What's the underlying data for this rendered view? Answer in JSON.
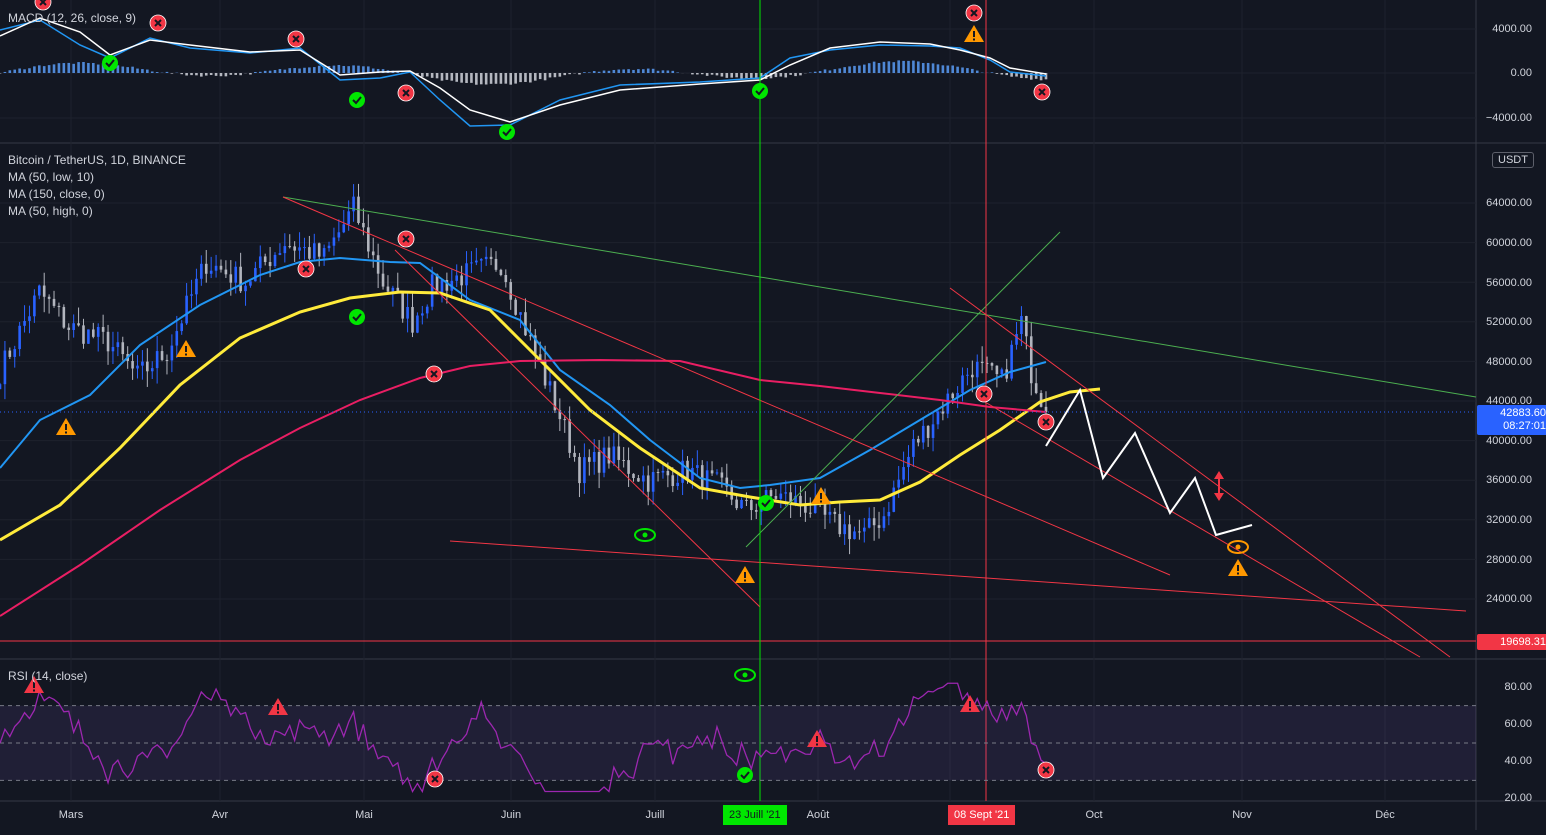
{
  "macd": {
    "legend": "MACD (12, 26, close, 9)",
    "ticks": [
      "4000.00",
      "0.00",
      "−4000.00"
    ]
  },
  "main": {
    "symbol_title": "Bitcoin / TetherUS, 1D, BINANCE",
    "indicators": [
      "MA (50, low, 10)",
      "MA (150, close, 0)",
      "MA (50, high, 0)"
    ],
    "price_ticks": [
      "64000.00",
      "60000.00",
      "56000.00",
      "52000.00",
      "48000.00",
      "44000.00",
      "40000.00",
      "36000.00",
      "32000.00",
      "28000.00",
      "24000.00"
    ],
    "currency_button": "USDT",
    "last_price": "42883.60",
    "countdown": "08:27:01",
    "support_price": "19698.31"
  },
  "rsi": {
    "legend": "RSI (14, close)",
    "ticks": [
      "80.00",
      "60.00",
      "40.00",
      "20.00"
    ]
  },
  "time_axis": {
    "months": [
      "Mars",
      "Avr",
      "Mai",
      "Juin",
      "Juill",
      "Août",
      "Oct",
      "Nov",
      "Déc"
    ],
    "green_marker": "23 Juill '21",
    "red_marker": "08 Sept '21"
  },
  "colors": {
    "background": "#131722",
    "bull": "#2962ff",
    "bear": "#b2b5be",
    "ma_blue": "#2196f3",
    "ma_yellow": "#ffeb3b",
    "ma_red": "#e91e63",
    "trend_red": "#f23645",
    "trend_green": "#4caf50",
    "rsi_line": "#9c27b0"
  },
  "icons": [
    "cross-circle-icon",
    "check-circle-icon",
    "warning-triangle-icon",
    "eye-icon",
    "double-arrow-icon"
  ]
}
